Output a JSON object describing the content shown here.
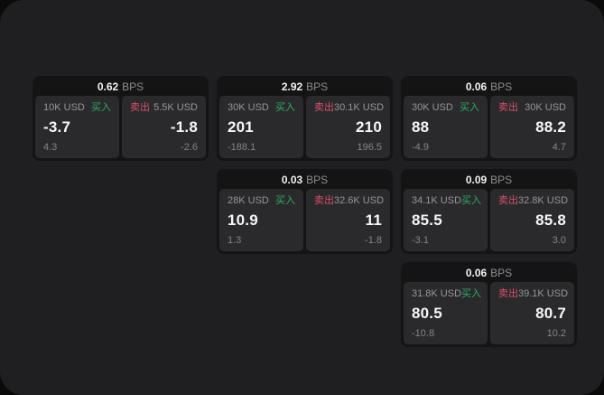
{
  "labels": {
    "bps": "BPS",
    "buy": "买入",
    "sell": "卖出"
  },
  "colors": {
    "buy_green": "#2fad63",
    "sell_red": "#d8506b",
    "surface": "#1f1f21",
    "card_bg": "#141415",
    "cell_bg": "#2a2a2c"
  },
  "cards": [
    {
      "bps": "0.62",
      "buy": {
        "amount": "10K USD",
        "price": "-3.7",
        "change": "4.3"
      },
      "sell": {
        "amount": "5.5K USD",
        "price": "-1.8",
        "change": "-2.6"
      }
    },
    {
      "bps": "2.92",
      "buy": {
        "amount": "30K USD",
        "price": "201",
        "change": "-188.1"
      },
      "sell": {
        "amount": "30.1K USD",
        "price": "210",
        "change": "196.5"
      }
    },
    {
      "bps": "0.06",
      "buy": {
        "amount": "30K USD",
        "price": "88",
        "change": "-4.9"
      },
      "sell": {
        "amount": "30K USD",
        "price": "88.2",
        "change": "4.7"
      }
    },
    {
      "bps": "0.03",
      "buy": {
        "amount": "28K USD",
        "price": "10.9",
        "change": "1.3"
      },
      "sell": {
        "amount": "32.6K USD",
        "price": "11",
        "change": "-1.8"
      }
    },
    {
      "bps": "0.09",
      "buy": {
        "amount": "34.1K USD",
        "price": "85.5",
        "change": "-3.1"
      },
      "sell": {
        "amount": "32.8K USD",
        "price": "85.8",
        "change": "3.0"
      }
    },
    {
      "bps": "0.06",
      "buy": {
        "amount": "31.8K USD",
        "price": "80.5",
        "change": "-10.8"
      },
      "sell": {
        "amount": "39.1K USD",
        "price": "80.7",
        "change": "10.2"
      }
    }
  ]
}
